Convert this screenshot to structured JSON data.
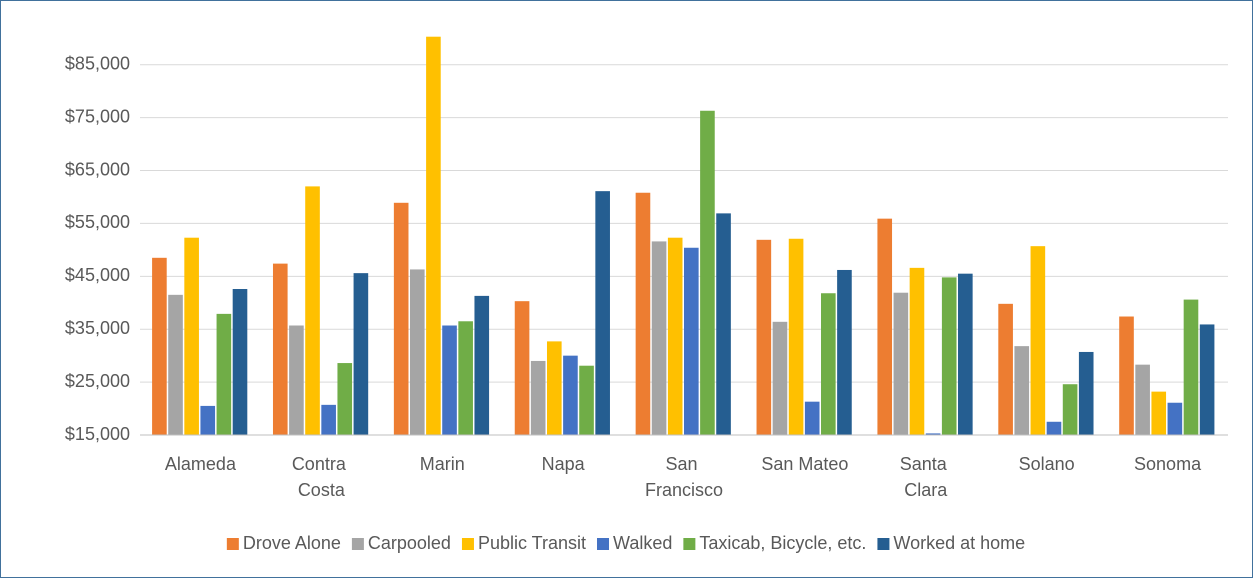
{
  "chart_data": {
    "type": "bar",
    "categories": [
      "Alameda",
      "Contra Costa",
      "Marin",
      "Napa",
      "San Francisco",
      "San Mateo",
      "Santa Clara",
      "Solano",
      "Sonoma"
    ],
    "series": [
      {
        "name": "Drove Alone",
        "color": "#ED7D31",
        "values": [
          48500,
          47400,
          58900,
          40300,
          60800,
          51900,
          55900,
          39800,
          37400
        ]
      },
      {
        "name": "Carpooled",
        "color": "#A5A5A5",
        "values": [
          41500,
          35700,
          46300,
          29000,
          51600,
          36400,
          41900,
          31800,
          28300
        ]
      },
      {
        "name": "Public Transit",
        "color": "#FFC000",
        "values": [
          52300,
          62000,
          90300,
          32700,
          52300,
          52100,
          46600,
          50700,
          23200
        ]
      },
      {
        "name": "Walked",
        "color": "#4472C4",
        "values": [
          20500,
          20700,
          35700,
          30000,
          50400,
          21300,
          15300,
          17500,
          21100
        ]
      },
      {
        "name": "Taxicab, Bicycle, etc.",
        "color": "#70AD47",
        "values": [
          37900,
          28600,
          36500,
          28100,
          76300,
          41800,
          44800,
          24600,
          40600
        ]
      },
      {
        "name": "Worked at home",
        "color": "#255E91",
        "values": [
          42600,
          45600,
          41300,
          61100,
          56900,
          46200,
          45500,
          30700,
          35900
        ]
      }
    ],
    "ylim": [
      15000,
      91000
    ],
    "yticks": [
      {
        "value": 15000,
        "label": "$15,000"
      },
      {
        "value": 25000,
        "label": "$25,000"
      },
      {
        "value": 35000,
        "label": "$35,000"
      },
      {
        "value": 45000,
        "label": "$45,000"
      },
      {
        "value": 55000,
        "label": "$55,000"
      },
      {
        "value": 65000,
        "label": "$65,000"
      },
      {
        "value": 75000,
        "label": "$75,000"
      },
      {
        "value": 85000,
        "label": "$85,000"
      }
    ],
    "grid": true,
    "legend": "bottom"
  }
}
